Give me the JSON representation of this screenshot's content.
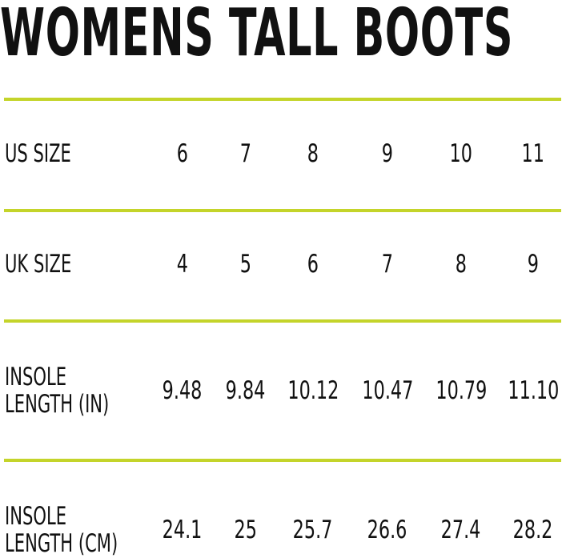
{
  "title": "WOMENS TALL BOOTS",
  "accent_color": "#c4d42a",
  "rows": [
    {
      "label": "US SIZE",
      "values": [
        "6",
        "7",
        "8",
        "9",
        "10",
        "11"
      ]
    },
    {
      "label": "UK SIZE",
      "values": [
        "4",
        "5",
        "6",
        "7",
        "8",
        "9"
      ]
    },
    {
      "label": "INSOLE\nLENGTH (IN)",
      "values": [
        "9.48",
        "9.84",
        "10.12",
        "10.47",
        "10.79",
        "11.10"
      ]
    },
    {
      "label": "INSOLE\nLENGTH (CM)",
      "values": [
        "24.1",
        "25",
        "25.7",
        "26.6",
        "27.4",
        "28.2"
      ]
    }
  ]
}
